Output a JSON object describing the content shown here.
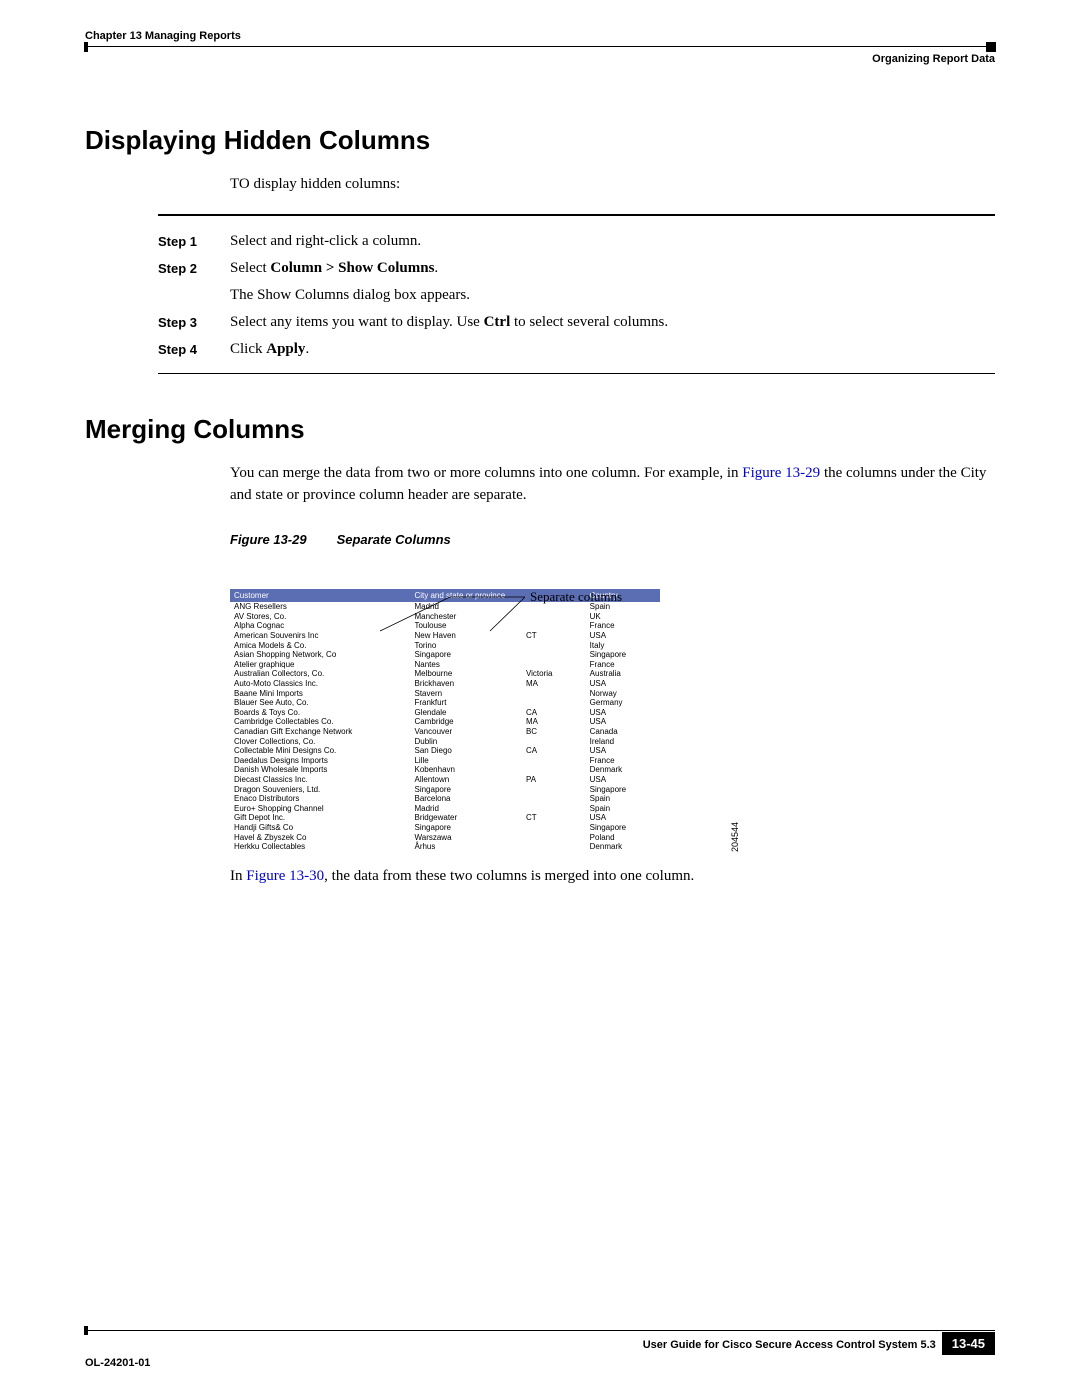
{
  "header": {
    "chapter": "Chapter 13    Managing Reports",
    "sectionRight": "Organizing Report Data"
  },
  "section1": {
    "title": "Displaying Hidden Columns",
    "intro": "TO display hidden columns:",
    "steps": {
      "s1": {
        "label": "Step 1",
        "text_a": "Select and right-click a column."
      },
      "s2": {
        "label": "Step 2",
        "text_a": "Select ",
        "bold": "Column > Show Columns",
        "text_b": ".",
        "sub": "The Show Columns dialog box appears."
      },
      "s3": {
        "label": "Step 3",
        "text_a": "Select any items you want to display. Use ",
        "bold": "Ctrl",
        "text_b": " to select several columns."
      },
      "s4": {
        "label": "Step 4",
        "text_a": "Click ",
        "bold": "Apply",
        "text_b": "."
      }
    }
  },
  "section2": {
    "title": "Merging Columns",
    "body_a": "You can merge the data from two or more columns into one column. For example, in ",
    "body_link": "Figure 13-29",
    "body_b": " the columns under the City and state or province column header are separate.",
    "figure": {
      "caption_num": "Figure 13-29",
      "caption_title": "Separate Columns",
      "annotation": "Separate columns",
      "image_id": "204544",
      "headers": {
        "customer": "Customer",
        "city": "City and state or province",
        "country": "Country"
      },
      "rows": [
        {
          "c": "ANG Resellers",
          "city": "Madrid",
          "st": "",
          "co": "Spain"
        },
        {
          "c": "AV Stores, Co.",
          "city": "Manchester",
          "st": "",
          "co": "UK"
        },
        {
          "c": "Alpha Cognac",
          "city": "Toulouse",
          "st": "",
          "co": "France"
        },
        {
          "c": "American Souvenirs Inc",
          "city": "New Haven",
          "st": "CT",
          "co": "USA"
        },
        {
          "c": "Amica Models & Co.",
          "city": "Torino",
          "st": "",
          "co": "Italy"
        },
        {
          "c": "Asian Shopping Network, Co",
          "city": "Singapore",
          "st": "",
          "co": "Singapore"
        },
        {
          "c": "Atelier graphique",
          "city": "Nantes",
          "st": "",
          "co": "France"
        },
        {
          "c": "Australian Collectors, Co.",
          "city": "Melbourne",
          "st": "Victoria",
          "co": "Australia"
        },
        {
          "c": "Auto-Moto Classics Inc.",
          "city": "Brickhaven",
          "st": "MA",
          "co": "USA"
        },
        {
          "c": "Baane Mini Imports",
          "city": "Stavern",
          "st": "",
          "co": "Norway"
        },
        {
          "c": "Blauer See Auto, Co.",
          "city": "Frankfurt",
          "st": "",
          "co": "Germany"
        },
        {
          "c": "Boards & Toys Co.",
          "city": "Glendale",
          "st": "CA",
          "co": "USA"
        },
        {
          "c": "Cambridge Collectables Co.",
          "city": "Cambridge",
          "st": "MA",
          "co": "USA"
        },
        {
          "c": "Canadian Gift Exchange Network",
          "city": "Vancouver",
          "st": "BC",
          "co": "Canada"
        },
        {
          "c": "Clover Collections, Co.",
          "city": "Dublin",
          "st": "",
          "co": "Ireland"
        },
        {
          "c": "Collectable Mini Designs Co.",
          "city": "San Diego",
          "st": "CA",
          "co": "USA"
        },
        {
          "c": "Daedalus Designs Imports",
          "city": "Lille",
          "st": "",
          "co": "France"
        },
        {
          "c": "Danish Wholesale Imports",
          "city": "Kobenhavn",
          "st": "",
          "co": "Denmark"
        },
        {
          "c": "Diecast Classics Inc.",
          "city": "Allentown",
          "st": "PA",
          "co": "USA"
        },
        {
          "c": "Dragon Souveniers, Ltd.",
          "city": "Singapore",
          "st": "",
          "co": "Singapore"
        },
        {
          "c": "Enaco Distributors",
          "city": "Barcelona",
          "st": "",
          "co": "Spain"
        },
        {
          "c": "Euro+ Shopping Channel",
          "city": "Madrid",
          "st": "",
          "co": "Spain"
        },
        {
          "c": "Gift Depot Inc.",
          "city": "Bridgewater",
          "st": "CT",
          "co": "USA"
        },
        {
          "c": "Handji Gifts& Co",
          "city": "Singapore",
          "st": "",
          "co": "Singapore"
        },
        {
          "c": "Havel & Zbyszek Co",
          "city": "Warszawa",
          "st": "",
          "co": "Poland"
        },
        {
          "c": "Herkku Collectables",
          "city": "Århus",
          "st": "",
          "co": "Denmark"
        }
      ]
    },
    "after_a": "In ",
    "after_link": "Figure 13-30",
    "after_b": ", the data from these two columns is merged into one column."
  },
  "footer": {
    "guide": "User Guide for Cisco Secure Access Control System 5.3",
    "doc": "OL-24201-01",
    "page": "13-45"
  }
}
